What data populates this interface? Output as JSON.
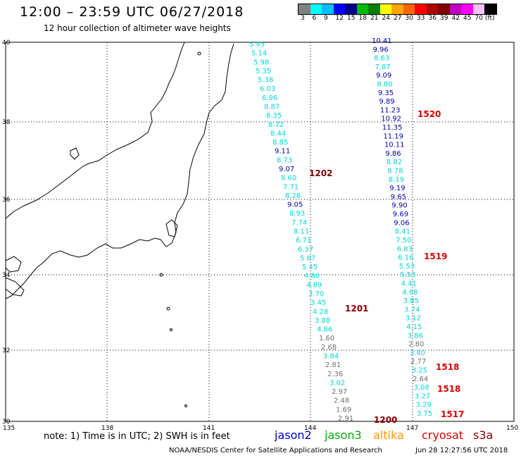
{
  "header": {
    "title": "12:00 – 23:59 UTC 06/27/2018",
    "subtitle": "12 hour collection of altimeter wave heights"
  },
  "scale": {
    "colors": [
      "#808080",
      "#00ffff",
      "#00bfff",
      "#0000ff",
      "#00008b",
      "#00bb00",
      "#008000",
      "#ffff00",
      "#ffa500",
      "#ff6600",
      "#ff0000",
      "#b00000",
      "#800000",
      "#c000c0",
      "#ff00ff",
      "#ffc0ff",
      "#000000"
    ],
    "labels": [
      "3",
      "6",
      "9",
      "12",
      "15",
      "18",
      "21",
      "24",
      "27",
      "30",
      "33",
      "36",
      "39",
      "42",
      "45",
      "70",
      "(ft)"
    ]
  },
  "axes": {
    "lon_labels": [
      "135",
      "138",
      "141",
      "144",
      "147",
      "150"
    ],
    "lat_labels": [
      "40",
      "38",
      "36",
      "34",
      "32",
      "30"
    ]
  },
  "tracks": [
    {
      "color": "#00e5e5",
      "values": [
        "5.45",
        "5.14",
        "5.98",
        "5.35",
        "5.38",
        "6.03",
        "6.96",
        "8.87",
        "8.35",
        "8.72",
        "8.44",
        "8.85",
        "9.11",
        "8.73",
        "9.07",
        "8.60",
        "7.71",
        "8.28",
        "9.05",
        "8.93",
        "7.74",
        "8.11",
        "6.71",
        "6.37",
        "5.67",
        "5.45",
        "4.80",
        "4.89",
        "3.70",
        "3.45",
        "4.28",
        "3.88",
        "4.86",
        "1.60",
        "2.68",
        "3.84",
        "2.81",
        "2.36",
        "3.02",
        "2.97",
        "2.48",
        "1.69",
        "2.91"
      ],
      "value_colors": [
        "cy",
        "cy",
        "cy",
        "cy",
        "cy",
        "cy",
        "cy",
        "cy",
        "cy",
        "cy",
        "cy",
        "cy",
        "db",
        "cy",
        "db",
        "cy",
        "cy",
        "cy",
        "db",
        "cy",
        "cy",
        "cy",
        "cy",
        "cy",
        "cy",
        "cy",
        "cy",
        "cy",
        "cy",
        "cy",
        "cy",
        "cy",
        "cy",
        "gr",
        "gr",
        "cy",
        "gr",
        "gr",
        "cy",
        "gr",
        "gr",
        "gr",
        "gr"
      ]
    },
    {
      "color": "#00e5e5",
      "values": [
        "10.41",
        "9.96",
        "8.63",
        "7.87",
        "9.09",
        "8.80",
        "9.35",
        "9.89",
        "11.23",
        "10.92",
        "11.35",
        "11.19",
        "10.11",
        "9.86",
        "8.82",
        "8.78",
        "8.19",
        "9.19",
        "9.65",
        "9.90",
        "9.69",
        "9.06",
        "8.41",
        "7.50",
        "6.83",
        "6.16",
        "5.53",
        "5.53",
        "4.41",
        "4.68",
        "3.85",
        "3.74",
        "3.12",
        "4.15",
        "3.86",
        "2.80",
        "3.40",
        "2.77",
        "3.25",
        "2.64",
        "3.08",
        "3.27",
        "3.29",
        "3.75"
      ],
      "value_colors": [
        "db",
        "db",
        "cy",
        "cy",
        "db",
        "cy",
        "db",
        "db",
        "db",
        "db",
        "db",
        "db",
        "db",
        "db",
        "cy",
        "cy",
        "cy",
        "db",
        "db",
        "db",
        "db",
        "db",
        "cy",
        "cy",
        "cy",
        "cy",
        "cy",
        "cy",
        "cy",
        "cy",
        "cy",
        "cy",
        "cy",
        "cy",
        "cy",
        "gr",
        "cy",
        "gr",
        "cy",
        "gr",
        "cy",
        "cy",
        "cy",
        "cy"
      ]
    }
  ],
  "pass_labels": [
    {
      "text": "1520",
      "color": "#dd0000"
    },
    {
      "text": "1202",
      "color": "#800000"
    },
    {
      "text": "1519",
      "color": "#dd0000"
    },
    {
      "text": "1201",
      "color": "#800000"
    },
    {
      "text": "1518",
      "color": "#dd0000"
    },
    {
      "text": "1518",
      "color": "#dd0000"
    },
    {
      "text": "1517",
      "color": "#dd0000"
    },
    {
      "text": "1200",
      "color": "#800000"
    }
  ],
  "footer": {
    "note": "note: 1) Time is in UTC; 2) SWH is in feet",
    "legend": [
      {
        "text": "jason2",
        "color": "#0000cc"
      },
      {
        "text": "jason3",
        "color": "#00aa00"
      },
      {
        "text": "altika",
        "color": "#ff9900"
      },
      {
        "text": "cryosat",
        "color": "#dd0000"
      },
      {
        "text": "s3a",
        "color": "#880000"
      }
    ],
    "credit": "NOAA/NESDIS Center for Satellite Applications and Research",
    "timestamp": "Jun 28 12:27:56 UTC 2018"
  }
}
